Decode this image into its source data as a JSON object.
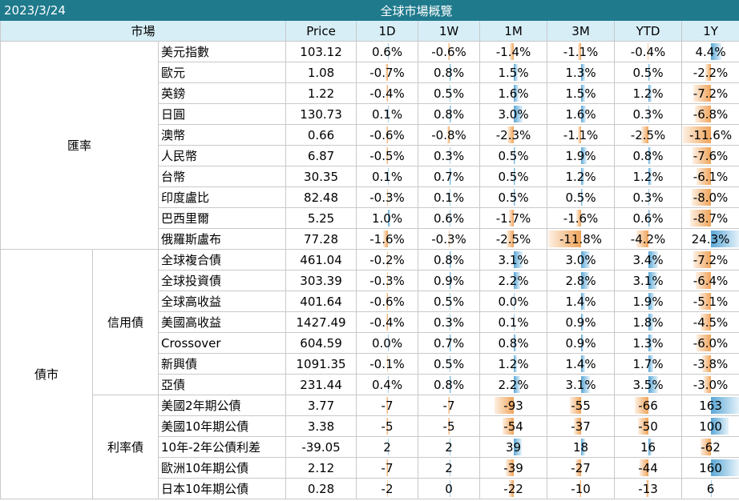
{
  "title_bar": {
    "date": "2023/3/24",
    "title": "全球市場概覽"
  },
  "header": {
    "market": "市場",
    "price": "Price",
    "periods": [
      "1D",
      "1W",
      "1M",
      "3M",
      "YTD",
      "1Y"
    ]
  },
  "colors": {
    "header_bg": "#d7eef7",
    "title_bg": "#1f7a8c",
    "positive_bar": "#5aa7d6",
    "negative_bar": "#f0a45a"
  },
  "sections": [
    {
      "category": "匯率",
      "subcategory": "",
      "unit": "percent",
      "max_abs": 12,
      "rows": [
        {
          "name": "美元指數",
          "price": "103.12",
          "values": [
            0.6,
            -0.6,
            -1.4,
            -1.1,
            -0.4,
            4.4
          ],
          "display": [
            "0.6%",
            "-0.6%",
            "-1.4%",
            "-1.1%",
            "-0.4%",
            "4.4%"
          ]
        },
        {
          "name": "歐元",
          "price": "1.08",
          "values": [
            -0.7,
            0.8,
            1.5,
            1.3,
            0.5,
            -2.2
          ],
          "display": [
            "-0.7%",
            "0.8%",
            "1.5%",
            "1.3%",
            "0.5%",
            "-2.2%"
          ]
        },
        {
          "name": "英鎊",
          "price": "1.22",
          "values": [
            -0.4,
            0.5,
            1.6,
            1.5,
            1.2,
            -7.2
          ],
          "display": [
            "-0.4%",
            "0.5%",
            "1.6%",
            "1.5%",
            "1.2%",
            "-7.2%"
          ]
        },
        {
          "name": "日圓",
          "price": "130.73",
          "values": [
            0.1,
            0.8,
            3.0,
            1.6,
            0.3,
            -6.8
          ],
          "display": [
            "0.1%",
            "0.8%",
            "3.0%",
            "1.6%",
            "0.3%",
            "-6.8%"
          ]
        },
        {
          "name": "澳幣",
          "price": "0.66",
          "values": [
            -0.6,
            -0.8,
            -2.3,
            -1.1,
            -2.5,
            -11.6
          ],
          "display": [
            "-0.6%",
            "-0.8%",
            "-2.3%",
            "-1.1%",
            "-2.5%",
            "-11.6%"
          ]
        },
        {
          "name": "人民幣",
          "price": "6.87",
          "values": [
            -0.5,
            0.3,
            0.5,
            1.9,
            0.8,
            -7.6
          ],
          "display": [
            "-0.5%",
            "0.3%",
            "0.5%",
            "1.9%",
            "0.8%",
            "-7.6%"
          ]
        },
        {
          "name": "台幣",
          "price": "30.35",
          "values": [
            0.1,
            0.7,
            0.5,
            1.2,
            1.2,
            -6.1
          ],
          "display": [
            "0.1%",
            "0.7%",
            "0.5%",
            "1.2%",
            "1.2%",
            "-6.1%"
          ]
        },
        {
          "name": "印度盧比",
          "price": "82.48",
          "values": [
            -0.3,
            0.1,
            0.5,
            0.5,
            0.3,
            -8.0
          ],
          "display": [
            "-0.3%",
            "0.1%",
            "0.5%",
            "0.5%",
            "0.3%",
            "-8.0%"
          ]
        },
        {
          "name": "巴西里爾",
          "price": "5.25",
          "values": [
            1.0,
            0.6,
            -1.7,
            -1.6,
            0.6,
            -8.7
          ],
          "display": [
            "1.0%",
            "0.6%",
            "-1.7%",
            "-1.6%",
            "0.6%",
            "-8.7%"
          ]
        },
        {
          "name": "俄羅斯盧布",
          "price": "77.28",
          "values": [
            -1.6,
            -0.3,
            -2.5,
            -11.8,
            -4.2,
            24.3
          ],
          "display": [
            "-1.6%",
            "-0.3%",
            "-2.5%",
            "-11.8%",
            "-4.2%",
            "24.3%"
          ]
        }
      ]
    },
    {
      "category": "債市",
      "subcategory": "信用債",
      "unit": "percent",
      "max_abs": 12,
      "rows": [
        {
          "name": "全球複合債",
          "price": "461.04",
          "values": [
            -0.2,
            0.8,
            3.1,
            3.0,
            3.4,
            -7.2
          ],
          "display": [
            "-0.2%",
            "0.8%",
            "3.1%",
            "3.0%",
            "3.4%",
            "-7.2%"
          ]
        },
        {
          "name": "全球投資債",
          "price": "303.39",
          "values": [
            -0.3,
            0.9,
            2.2,
            2.8,
            3.1,
            -6.4
          ],
          "display": [
            "-0.3%",
            "0.9%",
            "2.2%",
            "2.8%",
            "3.1%",
            "-6.4%"
          ]
        },
        {
          "name": "全球高收益",
          "price": "401.64",
          "values": [
            -0.6,
            0.5,
            0.0,
            1.4,
            1.9,
            -5.1
          ],
          "display": [
            "-0.6%",
            "0.5%",
            "0.0%",
            "1.4%",
            "1.9%",
            "-5.1%"
          ]
        },
        {
          "name": "美國高收益",
          "price": "1427.49",
          "values": [
            -0.4,
            0.3,
            0.1,
            0.9,
            1.8,
            -4.5
          ],
          "display": [
            "-0.4%",
            "0.3%",
            "0.1%",
            "0.9%",
            "1.8%",
            "-4.5%"
          ]
        },
        {
          "name": "Crossover",
          "price": "604.59",
          "values": [
            0.0,
            0.7,
            0.8,
            0.9,
            1.3,
            -6.0
          ],
          "display": [
            "0.0%",
            "0.7%",
            "0.8%",
            "0.9%",
            "1.3%",
            "-6.0%"
          ]
        },
        {
          "name": "新興債",
          "price": "1091.35",
          "values": [
            -0.1,
            0.5,
            1.2,
            1.4,
            1.7,
            -3.8
          ],
          "display": [
            "-0.1%",
            "0.5%",
            "1.2%",
            "1.4%",
            "1.7%",
            "-3.8%"
          ]
        },
        {
          "name": "亞債",
          "price": "231.44",
          "values": [
            0.4,
            0.8,
            2.2,
            3.1,
            3.5,
            -3.0
          ],
          "display": [
            "0.4%",
            "0.8%",
            "2.2%",
            "3.1%",
            "3.5%",
            "-3.0%"
          ]
        }
      ]
    },
    {
      "category": "債市",
      "subcategory": "利率債",
      "unit": "bp",
      "max_abs": 165,
      "rows": [
        {
          "name": "美國2年期公債",
          "price": "3.77",
          "values": [
            -7,
            -7,
            -93,
            -55,
            -66,
            163
          ],
          "display": [
            "-7",
            "-7",
            "-93",
            "-55",
            "-66",
            "163"
          ]
        },
        {
          "name": "美國10年期公債",
          "price": "3.38",
          "values": [
            -5,
            -5,
            -54,
            -37,
            -50,
            100
          ],
          "display": [
            "-5",
            "-5",
            "-54",
            "-37",
            "-50",
            "100"
          ]
        },
        {
          "name": "10年-2年公債利差",
          "price": "-39.05",
          "values": [
            2,
            2,
            39,
            18,
            16,
            -62
          ],
          "display": [
            "2",
            "2",
            "39",
            "18",
            "16",
            "-62"
          ]
        },
        {
          "name": "歐洲10年期公債",
          "price": "2.12",
          "values": [
            -7,
            2,
            -39,
            -27,
            -44,
            160
          ],
          "display": [
            "-7",
            "2",
            "-39",
            "-27",
            "-44",
            "160"
          ]
        },
        {
          "name": "日本10年期公債",
          "price": "0.28",
          "values": [
            -2,
            0,
            -22,
            -10,
            -13,
            6
          ],
          "display": [
            "-2",
            "0",
            "-22",
            "-10",
            "-13",
            "6"
          ]
        }
      ]
    }
  ]
}
